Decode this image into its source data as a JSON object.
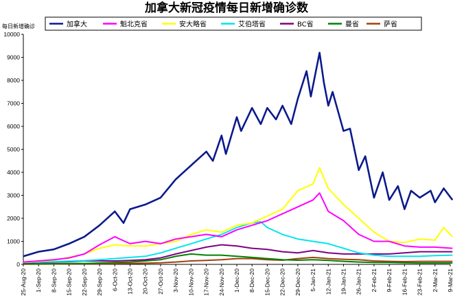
{
  "chart_data": {
    "type": "line",
    "title": "加拿大新冠疫情每日新增确诊数",
    "ylabel": "每日新增确诊",
    "xlabel": "",
    "ylim": [
      0,
      10000
    ],
    "y_ticks": [
      0,
      1000,
      2000,
      3000,
      4000,
      5000,
      6000,
      7000,
      8000,
      9000,
      10000
    ],
    "x_ticks": [
      "25-Aug-20",
      "1-Sep-20",
      "8-Sep-20",
      "15-Sep-20",
      "22-Sep-20",
      "29-Sep-20",
      "6-Oct-20",
      "13-Oct-20",
      "20-Oct-20",
      "27-Oct-20",
      "3-Nov-20",
      "10-Nov-20",
      "17-Nov-20",
      "24-Nov-20",
      "1-Dec-20",
      "8-Dec-20",
      "15-Dec-20",
      "22-Dec-20",
      "29-Dec-20",
      "5-Jan-21",
      "12-Jan-21",
      "19-Jan-21",
      "26-Jan-21",
      "2-Feb-21",
      "9-Feb-21",
      "16-Feb-21",
      "23-Feb-21",
      "2-Mar-21",
      "9-Mar-21"
    ],
    "grid": false,
    "legend_position": "top",
    "series": [
      {
        "name": "加拿大",
        "color": "#0a1a8c",
        "width": 2.6,
        "points": [
          [
            "25-Aug-20",
            350
          ],
          [
            "1-Sep-20",
            550
          ],
          [
            "8-Sep-20",
            650
          ],
          [
            "15-Sep-20",
            900
          ],
          [
            "22-Sep-20",
            1200
          ],
          [
            "29-Sep-20",
            1700
          ],
          [
            "6-Oct-20",
            2300
          ],
          [
            "10-Oct-20",
            1800
          ],
          [
            "13-Oct-20",
            2400
          ],
          [
            "20-Oct-20",
            2600
          ],
          [
            "27-Oct-20",
            2900
          ],
          [
            "3-Nov-20",
            3700
          ],
          [
            "10-Nov-20",
            4300
          ],
          [
            "17-Nov-20",
            4900
          ],
          [
            "20-Nov-20",
            4500
          ],
          [
            "24-Nov-20",
            5600
          ],
          [
            "26-Nov-20",
            4800
          ],
          [
            "1-Dec-20",
            6400
          ],
          [
            "3-Dec-20",
            5800
          ],
          [
            "8-Dec-20",
            6800
          ],
          [
            "12-Dec-20",
            6100
          ],
          [
            "15-Dec-20",
            6800
          ],
          [
            "19-Dec-20",
            6300
          ],
          [
            "22-Dec-20",
            6900
          ],
          [
            "26-Dec-20",
            6100
          ],
          [
            "29-Dec-20",
            7200
          ],
          [
            "2-Jan-21",
            8400
          ],
          [
            "4-Jan-21",
            7300
          ],
          [
            "8-Jan-21",
            9200
          ],
          [
            "10-Jan-21",
            7900
          ],
          [
            "12-Jan-21",
            6900
          ],
          [
            "14-Jan-21",
            7500
          ],
          [
            "19-Jan-21",
            5800
          ],
          [
            "22-Jan-21",
            5900
          ],
          [
            "26-Jan-21",
            4100
          ],
          [
            "29-Jan-21",
            4700
          ],
          [
            "2-Feb-21",
            2900
          ],
          [
            "6-Feb-21",
            4000
          ],
          [
            "9-Feb-21",
            2800
          ],
          [
            "13-Feb-21",
            3400
          ],
          [
            "16-Feb-21",
            2400
          ],
          [
            "19-Feb-21",
            3200
          ],
          [
            "23-Feb-21",
            2900
          ],
          [
            "28-Feb-21",
            3200
          ],
          [
            "2-Mar-21",
            2700
          ],
          [
            "6-Mar-21",
            3300
          ],
          [
            "10-Mar-21",
            2800
          ]
        ]
      },
      {
        "name": "魁北克省",
        "color": "#ff00ff",
        "width": 2.0,
        "points": [
          [
            "25-Aug-20",
            100
          ],
          [
            "1-Sep-20",
            150
          ],
          [
            "8-Sep-20",
            200
          ],
          [
            "15-Sep-20",
            280
          ],
          [
            "22-Sep-20",
            450
          ],
          [
            "29-Sep-20",
            850
          ],
          [
            "6-Oct-20",
            1200
          ],
          [
            "13-Oct-20",
            900
          ],
          [
            "20-Oct-20",
            1000
          ],
          [
            "27-Oct-20",
            900
          ],
          [
            "3-Nov-20",
            1100
          ],
          [
            "10-Nov-20",
            1200
          ],
          [
            "17-Nov-20",
            1300
          ],
          [
            "24-Nov-20",
            1200
          ],
          [
            "1-Dec-20",
            1500
          ],
          [
            "8-Dec-20",
            1700
          ],
          [
            "15-Dec-20",
            1900
          ],
          [
            "22-Dec-20",
            2200
          ],
          [
            "29-Dec-20",
            2500
          ],
          [
            "5-Jan-21",
            2800
          ],
          [
            "8-Jan-21",
            3100
          ],
          [
            "12-Jan-21",
            2300
          ],
          [
            "19-Jan-21",
            1900
          ],
          [
            "26-Jan-21",
            1300
          ],
          [
            "2-Feb-21",
            1000
          ],
          [
            "9-Feb-21",
            1000
          ],
          [
            "16-Feb-21",
            800
          ],
          [
            "23-Feb-21",
            750
          ],
          [
            "2-Mar-21",
            750
          ],
          [
            "10-Mar-21",
            700
          ]
        ]
      },
      {
        "name": "安大略省",
        "color": "#ffff00",
        "width": 2.0,
        "points": [
          [
            "25-Aug-20",
            90
          ],
          [
            "1-Sep-20",
            130
          ],
          [
            "8-Sep-20",
            180
          ],
          [
            "15-Sep-20",
            300
          ],
          [
            "22-Sep-20",
            450
          ],
          [
            "29-Sep-20",
            700
          ],
          [
            "6-Oct-20",
            850
          ],
          [
            "13-Oct-20",
            800
          ],
          [
            "20-Oct-20",
            800
          ],
          [
            "27-Oct-20",
            900
          ],
          [
            "3-Nov-20",
            1000
          ],
          [
            "10-Nov-20",
            1300
          ],
          [
            "17-Nov-20",
            1500
          ],
          [
            "24-Nov-20",
            1400
          ],
          [
            "1-Dec-20",
            1700
          ],
          [
            "8-Dec-20",
            1800
          ],
          [
            "15-Dec-20",
            2100
          ],
          [
            "22-Dec-20",
            2400
          ],
          [
            "29-Dec-20",
            3200
          ],
          [
            "5-Jan-21",
            3500
          ],
          [
            "8-Jan-21",
            4200
          ],
          [
            "12-Jan-21",
            3300
          ],
          [
            "19-Jan-21",
            2600
          ],
          [
            "26-Jan-21",
            2000
          ],
          [
            "2-Feb-21",
            1400
          ],
          [
            "9-Feb-21",
            1000
          ],
          [
            "16-Feb-21",
            950
          ],
          [
            "23-Feb-21",
            1100
          ],
          [
            "2-Mar-21",
            1050
          ],
          [
            "6-Mar-21",
            1600
          ],
          [
            "10-Mar-21",
            1200
          ]
        ]
      },
      {
        "name": "艾伯塔省",
        "color": "#00e5ee",
        "width": 2.0,
        "points": [
          [
            "25-Aug-20",
            80
          ],
          [
            "1-Sep-20",
            100
          ],
          [
            "8-Sep-20",
            120
          ],
          [
            "15-Sep-20",
            140
          ],
          [
            "22-Sep-20",
            160
          ],
          [
            "29-Sep-20",
            200
          ],
          [
            "6-Oct-20",
            250
          ],
          [
            "13-Oct-20",
            300
          ],
          [
            "20-Oct-20",
            350
          ],
          [
            "27-Oct-20",
            500
          ],
          [
            "3-Nov-20",
            700
          ],
          [
            "10-Nov-20",
            900
          ],
          [
            "17-Nov-20",
            1100
          ],
          [
            "24-Nov-20",
            1300
          ],
          [
            "1-Dec-20",
            1600
          ],
          [
            "8-Dec-20",
            1800
          ],
          [
            "12-Dec-20",
            1850
          ],
          [
            "15-Dec-20",
            1600
          ],
          [
            "22-Dec-20",
            1300
          ],
          [
            "29-Dec-20",
            1100
          ],
          [
            "5-Jan-21",
            1000
          ],
          [
            "12-Jan-21",
            900
          ],
          [
            "19-Jan-21",
            700
          ],
          [
            "26-Jan-21",
            500
          ],
          [
            "2-Feb-21",
            400
          ],
          [
            "9-Feb-21",
            350
          ],
          [
            "16-Feb-21",
            350
          ],
          [
            "23-Feb-21",
            350
          ],
          [
            "2-Mar-21",
            380
          ],
          [
            "10-Mar-21",
            400
          ]
        ]
      },
      {
        "name": "BC省",
        "color": "#800080",
        "width": 2.0,
        "points": [
          [
            "25-Aug-20",
            60
          ],
          [
            "1-Sep-20",
            80
          ],
          [
            "8-Sep-20",
            100
          ],
          [
            "15-Sep-20",
            120
          ],
          [
            "22-Sep-20",
            150
          ],
          [
            "29-Sep-20",
            150
          ],
          [
            "6-Oct-20",
            150
          ],
          [
            "13-Oct-20",
            170
          ],
          [
            "20-Oct-20",
            200
          ],
          [
            "27-Oct-20",
            280
          ],
          [
            "3-Nov-20",
            450
          ],
          [
            "10-Nov-20",
            600
          ],
          [
            "17-Nov-20",
            750
          ],
          [
            "24-Nov-20",
            850
          ],
          [
            "1-Dec-20",
            800
          ],
          [
            "8-Dec-20",
            700
          ],
          [
            "15-Dec-20",
            650
          ],
          [
            "22-Dec-20",
            550
          ],
          [
            "29-Dec-20",
            500
          ],
          [
            "5-Jan-21",
            600
          ],
          [
            "12-Jan-21",
            500
          ],
          [
            "19-Jan-21",
            450
          ],
          [
            "26-Jan-21",
            450
          ],
          [
            "2-Feb-21",
            450
          ],
          [
            "9-Feb-21",
            450
          ],
          [
            "16-Feb-21",
            500
          ],
          [
            "23-Feb-21",
            550
          ],
          [
            "2-Mar-21",
            550
          ],
          [
            "10-Mar-21",
            550
          ]
        ]
      },
      {
        "name": "曼省",
        "color": "#008000",
        "width": 2.0,
        "points": [
          [
            "25-Aug-20",
            20
          ],
          [
            "1-Sep-20",
            25
          ],
          [
            "8-Sep-20",
            30
          ],
          [
            "15-Sep-20",
            35
          ],
          [
            "22-Sep-20",
            40
          ],
          [
            "29-Sep-20",
            60
          ],
          [
            "6-Oct-20",
            80
          ],
          [
            "13-Oct-20",
            100
          ],
          [
            "20-Oct-20",
            150
          ],
          [
            "27-Oct-20",
            200
          ],
          [
            "3-Nov-20",
            350
          ],
          [
            "10-Nov-20",
            450
          ],
          [
            "17-Nov-20",
            400
          ],
          [
            "24-Nov-20",
            400
          ],
          [
            "1-Dec-20",
            350
          ],
          [
            "8-Dec-20",
            300
          ],
          [
            "15-Dec-20",
            250
          ],
          [
            "22-Dec-20",
            200
          ],
          [
            "29-Dec-20",
            180
          ],
          [
            "5-Jan-21",
            200
          ],
          [
            "12-Jan-21",
            170
          ],
          [
            "19-Jan-21",
            130
          ],
          [
            "26-Jan-21",
            100
          ],
          [
            "2-Feb-21",
            80
          ],
          [
            "9-Feb-21",
            80
          ],
          [
            "16-Feb-21",
            70
          ],
          [
            "23-Feb-21",
            60
          ],
          [
            "2-Mar-21",
            60
          ],
          [
            "10-Mar-21",
            60
          ]
        ]
      },
      {
        "name": "萨省",
        "color": "#a0400a",
        "width": 2.0,
        "points": [
          [
            "25-Aug-20",
            10
          ],
          [
            "1-Sep-20",
            12
          ],
          [
            "8-Sep-20",
            15
          ],
          [
            "15-Sep-20",
            18
          ],
          [
            "22-Sep-20",
            20
          ],
          [
            "29-Sep-20",
            25
          ],
          [
            "6-Oct-20",
            30
          ],
          [
            "13-Oct-20",
            35
          ],
          [
            "20-Oct-20",
            50
          ],
          [
            "27-Oct-20",
            70
          ],
          [
            "3-Nov-20",
            100
          ],
          [
            "10-Nov-20",
            150
          ],
          [
            "17-Nov-20",
            170
          ],
          [
            "24-Nov-20",
            200
          ],
          [
            "1-Dec-20",
            250
          ],
          [
            "8-Dec-20",
            250
          ],
          [
            "15-Dec-20",
            200
          ],
          [
            "22-Dec-20",
            180
          ],
          [
            "29-Dec-20",
            250
          ],
          [
            "5-Jan-21",
            300
          ],
          [
            "12-Jan-21",
            250
          ],
          [
            "19-Jan-21",
            220
          ],
          [
            "26-Jan-21",
            200
          ],
          [
            "2-Feb-21",
            150
          ],
          [
            "9-Feb-21",
            130
          ],
          [
            "16-Feb-21",
            120
          ],
          [
            "23-Feb-21",
            130
          ],
          [
            "2-Mar-21",
            130
          ],
          [
            "10-Mar-21",
            130
          ]
        ]
      }
    ]
  }
}
